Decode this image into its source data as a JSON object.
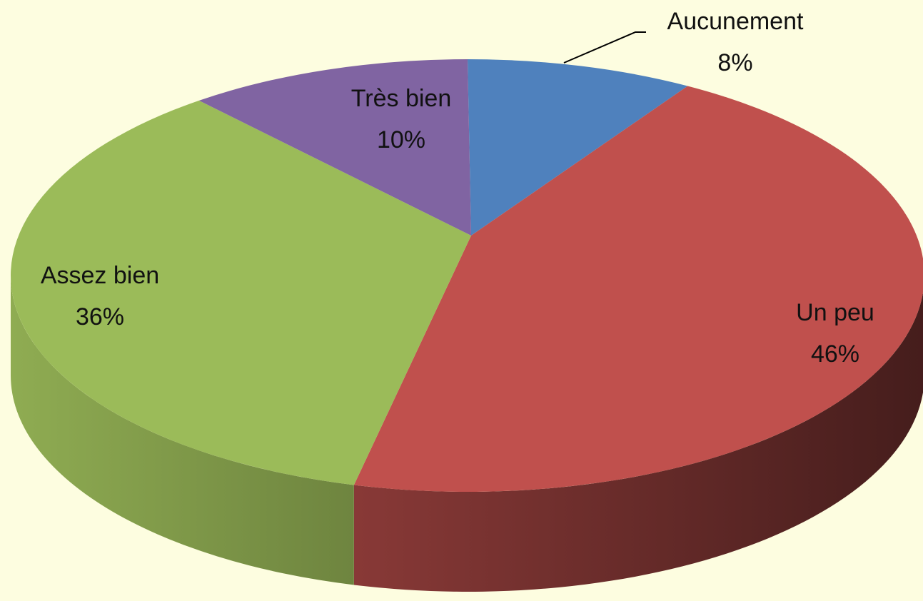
{
  "chart_data": {
    "type": "pie",
    "categories": [
      "Aucunement",
      "Un peu",
      "Assez bien",
      "Très bien"
    ],
    "values": [
      8,
      46,
      36,
      10
    ],
    "value_labels": [
      "8%",
      "46%",
      "36%",
      "10%"
    ],
    "colors": [
      "#4f81bd",
      "#c0504d",
      "#9bbb59",
      "#8064a2"
    ]
  }
}
